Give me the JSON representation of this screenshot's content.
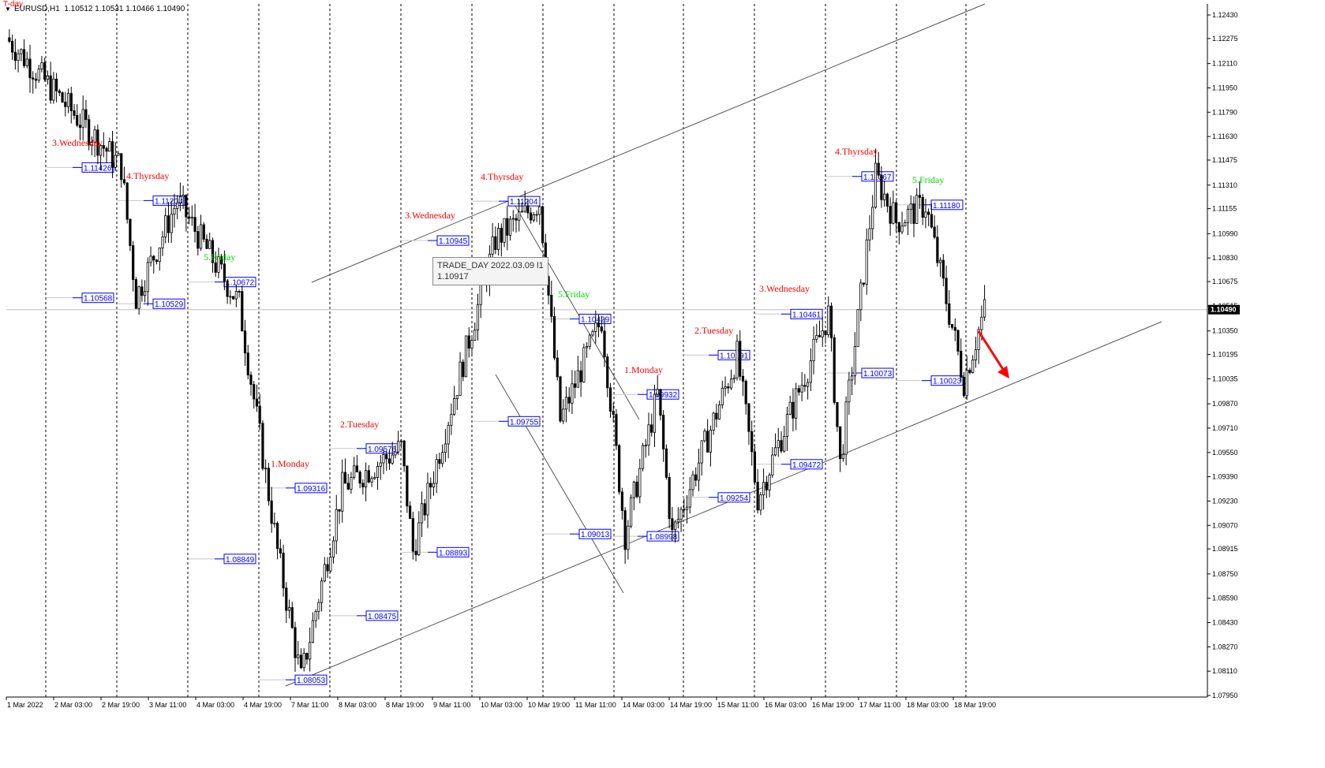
{
  "header": {
    "indicator": "T-day",
    "symbol_info": "EURUSD,H1  1.10512 1.10531 1.10466 1.10490"
  },
  "tooltip": {
    "line1": "TRADE_DAY 2022.03.09 l1",
    "line2": "1.10917"
  },
  "colors": {
    "candle": "#000000",
    "price_tag": "#0000ff",
    "day_label_red": "#ff0000",
    "day_label_green": "#00dd00",
    "arrow": "#ff0000",
    "grid": "#000000",
    "channel": "#555555",
    "last_price_line": "#c0c0c0"
  },
  "chart_data": {
    "type": "candlestick",
    "symbol": "EURUSD",
    "timeframe": "H1",
    "ylim": [
      1.079,
      1.1255
    ],
    "y_ticks": [
      "1.12430",
      "1.12275",
      "1.12110",
      "1.11950",
      "1.11790",
      "1.11630",
      "1.11475",
      "1.11310",
      "1.11155",
      "1.10990",
      "1.10830",
      "1.10675",
      "1.10515",
      "1.10350",
      "1.10195",
      "1.10035",
      "1.09870",
      "1.09710",
      "1.09550",
      "1.09390",
      "1.09230",
      "1.09070",
      "1.08915",
      "1.08750",
      "1.08590",
      "1.08430",
      "1.08270",
      "1.08110",
      "1.07950"
    ],
    "x_ticks": [
      "1 Mar 2022",
      "2 Mar 03:00",
      "2 Mar 19:00",
      "3 Mar 11:00",
      "4 Mar 03:00",
      "4 Mar 19:00",
      "7 Mar 11:00",
      "8 Mar 03:00",
      "8 Mar 19:00",
      "9 Mar 11:00",
      "10 Mar 03:00",
      "10 Mar 19:00",
      "11 Mar 11:00",
      "14 Mar 03:00",
      "14 Mar 19:00",
      "15 Mar 11:00",
      "16 Mar 03:00",
      "16 Mar 19:00",
      "17 Mar 11:00",
      "18 Mar 03:00",
      "18 Mar 19:00"
    ],
    "last_price": "1.10490",
    "last_price_value": 1.1049,
    "day_labels": [
      {
        "text": "3.Wednesday",
        "color": "red"
      },
      {
        "text": "4.Thyrsday",
        "color": "red"
      },
      {
        "text": "5.Friday",
        "color": "green"
      },
      {
        "text": "1.Monday",
        "color": "red"
      },
      {
        "text": "2.Tuesday",
        "color": "red"
      },
      {
        "text": "3.Wednesday",
        "color": "red"
      },
      {
        "text": "4.Thyrsday",
        "color": "red"
      },
      {
        "text": "5.Friday",
        "color": "green"
      },
      {
        "text": "1.Monday",
        "color": "red"
      },
      {
        "text": "2.Tuesday",
        "color": "red"
      },
      {
        "text": "3.Wednesday",
        "color": "red"
      },
      {
        "text": "4.Thyrsday",
        "color": "red"
      },
      {
        "text": "5.Friday",
        "color": "green"
      }
    ],
    "price_tags": [
      {
        "text": "1.11426",
        "value": 1.11426
      },
      {
        "text": "1.10568",
        "value": 1.10568
      },
      {
        "text": "1.11208",
        "value": 1.11208
      },
      {
        "text": "1.10529",
        "value": 1.10529
      },
      {
        "text": "1.10672",
        "value": 1.10672
      },
      {
        "text": "1.08849",
        "value": 1.08849
      },
      {
        "text": "1.09316",
        "value": 1.09316
      },
      {
        "text": "1.08053",
        "value": 1.08053
      },
      {
        "text": "1.09576",
        "value": 1.09576
      },
      {
        "text": "1.08475",
        "value": 1.08475
      },
      {
        "text": "1.10945",
        "value": 1.10945
      },
      {
        "text": "1.08893",
        "value": 1.08893
      },
      {
        "text": "1.11204",
        "value": 1.11204
      },
      {
        "text": "1.09755",
        "value": 1.09755
      },
      {
        "text": "1.10429",
        "value": 1.10429
      },
      {
        "text": "1.09013",
        "value": 1.09013
      },
      {
        "text": "1.09932",
        "value": 1.09932
      },
      {
        "text": "1.08998",
        "value": 1.08998
      },
      {
        "text": "1.10191",
        "value": 1.10191
      },
      {
        "text": "1.09254",
        "value": 1.09254
      },
      {
        "text": "1.10461",
        "value": 1.10461
      },
      {
        "text": "1.09472",
        "value": 1.09472
      },
      {
        "text": "1.11367",
        "value": 1.11367
      },
      {
        "text": "1.10073",
        "value": 1.10073
      },
      {
        "text": "1.11180",
        "value": 1.1118
      },
      {
        "text": "1.10023",
        "value": 1.10023
      }
    ],
    "key_points": [
      {
        "t": "1 Mar 00:00",
        "price": 1.1228
      },
      {
        "t": "2 Mar 15:00",
        "price": 1.1143
      },
      {
        "t": "2 Mar 20:00",
        "price": 1.1057
      },
      {
        "t": "3 Mar 10:00",
        "price": 1.1121
      },
      {
        "t": "4 Mar 07:00",
        "price": 1.1053
      },
      {
        "t": "4 Mar 20:00",
        "price": 1.089
      },
      {
        "t": "7 Mar 04:00",
        "price": 1.0806
      },
      {
        "t": "7 Mar 18:00",
        "price": 1.0932
      },
      {
        "t": "8 Mar 14:00",
        "price": 1.0958
      },
      {
        "t": "8 Mar 18:00",
        "price": 1.089
      },
      {
        "t": "9 Mar 22:00",
        "price": 1.1095
      },
      {
        "t": "10 Mar 13:00",
        "price": 1.112
      },
      {
        "t": "10 Mar 20:00",
        "price": 1.0976
      },
      {
        "t": "11 Mar 10:00",
        "price": 1.1043
      },
      {
        "t": "11 Mar 18:00",
        "price": 1.0901
      },
      {
        "t": "14 Mar 05:00",
        "price": 1.0993
      },
      {
        "t": "14 Mar 10:00",
        "price": 1.09
      },
      {
        "t": "15 Mar 08:00",
        "price": 1.1019
      },
      {
        "t": "15 Mar 15:00",
        "price": 1.0925
      },
      {
        "t": "16 Mar 15:00",
        "price": 1.1046
      },
      {
        "t": "16 Mar 19:00",
        "price": 1.0947
      },
      {
        "t": "17 Mar 07:00",
        "price": 1.1137
      },
      {
        "t": "17 Mar 14:00",
        "price": 1.1107
      },
      {
        "t": "18 Mar 00:00",
        "price": 1.1118
      },
      {
        "t": "18 Mar 13:00",
        "price": 1.1002
      },
      {
        "t": "18 Mar 20:00",
        "price": 1.1049
      }
    ]
  }
}
